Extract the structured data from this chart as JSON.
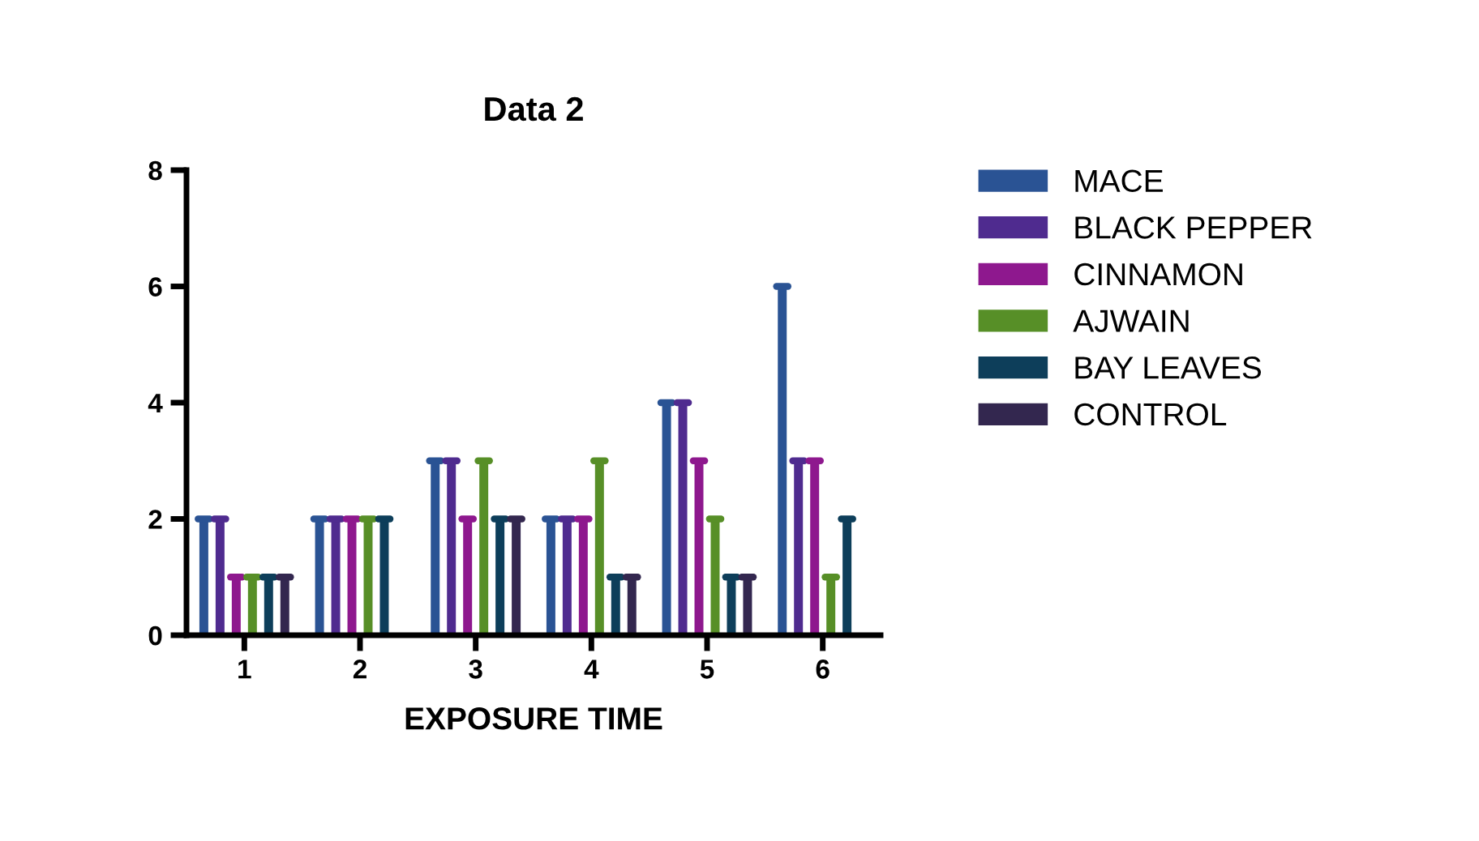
{
  "chart_data": {
    "type": "bar",
    "title": "Data 2",
    "xlabel": "EXPOSURE TIME",
    "categories": [
      "1",
      "2",
      "3",
      "4",
      "5",
      "6"
    ],
    "series": [
      {
        "name": "MACE",
        "color": "#2a5394",
        "values": [
          2,
          2,
          3,
          2,
          4,
          6
        ]
      },
      {
        "name": "BLACK PEPPER",
        "color": "#4f2b8f",
        "values": [
          2,
          2,
          3,
          2,
          4,
          3
        ]
      },
      {
        "name": "CINNAMON",
        "color": "#8e188e",
        "values": [
          1,
          2,
          2,
          2,
          3,
          3
        ]
      },
      {
        "name": "AJWAIN",
        "color": "#578f27",
        "values": [
          1,
          2,
          3,
          3,
          2,
          1
        ]
      },
      {
        "name": "BAY LEAVES",
        "color": "#0d3e5a",
        "values": [
          1,
          2,
          2,
          1,
          1,
          2
        ]
      },
      {
        "name": "CONTROL",
        "color": "#33274f",
        "values": [
          1,
          0,
          2,
          1,
          1,
          0
        ]
      }
    ],
    "ylim": [
      0,
      8
    ],
    "yticks": [
      0,
      2,
      4,
      6,
      8
    ],
    "grid": false,
    "legend": "right"
  }
}
